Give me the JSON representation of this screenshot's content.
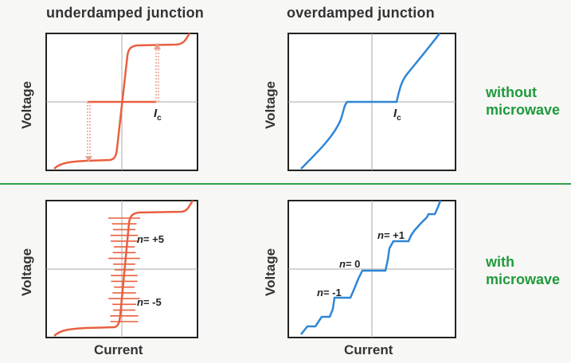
{
  "titles": {
    "left": "underdamped junction",
    "right": "overdamped junction"
  },
  "side_labels": {
    "top": [
      "without",
      "microwave"
    ],
    "bottom": [
      "with",
      "microwave"
    ]
  },
  "axes": {
    "y_label": "Voltage",
    "x_label": "Current"
  },
  "annotations": {
    "ic_main": "I",
    "ic_sub": "c",
    "n_italic": "n",
    "under_plus5": "= +5",
    "under_minus5": "= -5",
    "over_plus1": "= +1",
    "over_zero": "= 0",
    "over_minus1": "= -1"
  },
  "colors": {
    "underdamped": "#e8603f",
    "overdamped": "#2f86d6",
    "green_label": "#1f9a3c",
    "divider": "#2aa14a",
    "axes": "#9a9a9a",
    "frame": "#222222"
  }
}
